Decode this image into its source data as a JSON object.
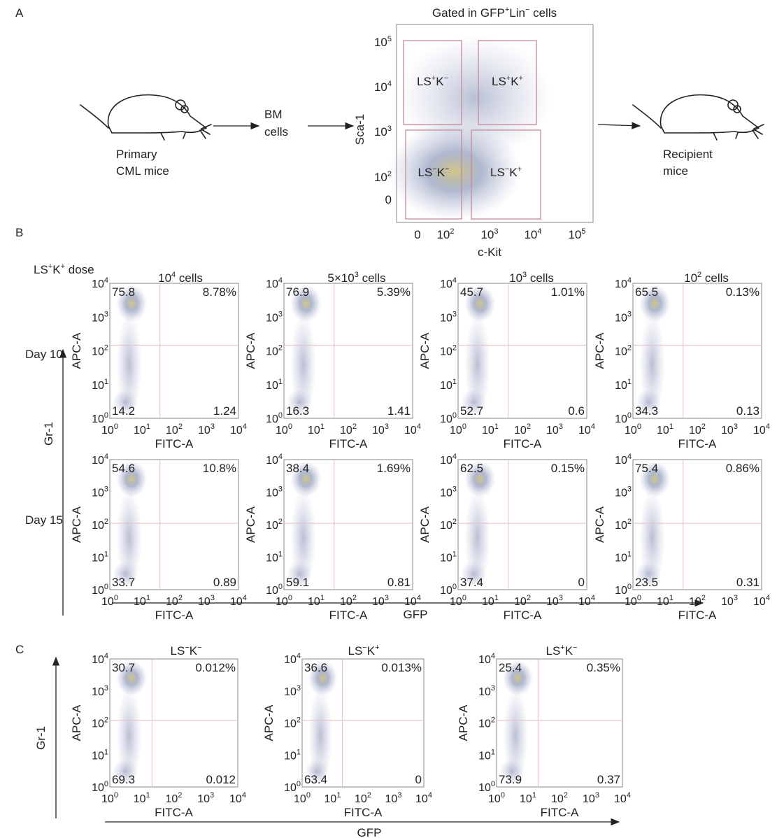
{
  "panel_labels": [
    "A",
    "B",
    "C"
  ],
  "panel_a": {
    "source_label": [
      "Primary",
      "CML mice"
    ],
    "bm_label": [
      "BM",
      "cells"
    ],
    "recipient_label": [
      "Recipient",
      "mice"
    ],
    "plot": {
      "title": [
        {
          "t": "Gated in GFP"
        },
        {
          "s": "+"
        },
        {
          "t": "Lin"
        },
        {
          "s": "−"
        },
        {
          "t": " cells"
        }
      ],
      "y_label": "Sca-1",
      "x_label": "c-Kit",
      "yticks": [
        [
          {
            "t": "10"
          },
          {
            "s": "5"
          }
        ],
        [
          {
            "t": "10"
          },
          {
            "s": "4"
          }
        ],
        [
          {
            "t": "10"
          },
          {
            "s": "3"
          }
        ],
        [
          {
            "t": "10"
          },
          {
            "s": "2"
          }
        ],
        [
          {
            "t": "0"
          }
        ]
      ],
      "xticks": [
        [
          {
            "t": "0"
          }
        ],
        [
          {
            "t": "10"
          },
          {
            "s": "2"
          }
        ],
        [
          {
            "t": "10"
          },
          {
            "s": "3"
          }
        ],
        [
          {
            "t": "10"
          },
          {
            "s": "4"
          }
        ],
        [
          {
            "t": "10"
          },
          {
            "s": "5"
          }
        ]
      ],
      "gates": [
        [
          {
            "t": "LS"
          },
          {
            "s": "+"
          },
          {
            "t": "K"
          },
          {
            "s": "−"
          }
        ],
        [
          {
            "t": "LS"
          },
          {
            "s": "+"
          },
          {
            "t": "K"
          },
          {
            "s": "+"
          }
        ],
        [
          {
            "t": "LS"
          },
          {
            "s": "−"
          },
          {
            "t": "K"
          },
          {
            "s": "−"
          }
        ],
        [
          {
            "t": "LS"
          },
          {
            "s": "−"
          },
          {
            "t": "K"
          },
          {
            "s": "+"
          }
        ]
      ]
    }
  },
  "flow_axis": {
    "y_label": "APC-A",
    "x_label": "FITC-A",
    "ticks": [
      [
        {
          "t": "10"
        },
        {
          "s": "0"
        }
      ],
      [
        {
          "t": "10"
        },
        {
          "s": "1"
        }
      ],
      [
        {
          "t": "10"
        },
        {
          "s": "2"
        }
      ],
      [
        {
          "t": "10"
        },
        {
          "s": "3"
        }
      ],
      [
        {
          "t": "10"
        },
        {
          "s": "4"
        }
      ]
    ]
  },
  "panel_b": {
    "dose_label": [
      {
        "t": "LS"
      },
      {
        "s": "+"
      },
      {
        "t": "K"
      },
      {
        "s": "+"
      },
      {
        "t": " dose"
      }
    ],
    "columns": [
      [
        {
          "t": "10"
        },
        {
          "s": "4"
        },
        {
          "t": " cells"
        }
      ],
      [
        {
          "t": "5×10"
        },
        {
          "s": "3"
        },
        {
          "t": " cells"
        }
      ],
      [
        {
          "t": "10"
        },
        {
          "s": "3"
        },
        {
          "t": " cells"
        }
      ],
      [
        {
          "t": "10"
        },
        {
          "s": "2"
        },
        {
          "t": " cells"
        }
      ]
    ],
    "rows": [
      {
        "label": "Day 10",
        "plots": [
          [
            "75.8",
            "8.78%",
            "14.2",
            "1.24"
          ],
          [
            "76.9",
            "5.39%",
            "16.3",
            "1.41"
          ],
          [
            "45.7",
            "1.01%",
            "52.7",
            "0.6"
          ],
          [
            "65.5",
            "0.13%",
            "34.3",
            "0.13"
          ]
        ]
      },
      {
        "label": "Day 15",
        "plots": [
          [
            "54.6",
            "10.8%",
            "33.7",
            "0.89"
          ],
          [
            "38.4",
            "1.69%",
            "59.1",
            "0.81"
          ],
          [
            "62.5",
            "0.15%",
            "37.4",
            "0"
          ],
          [
            "75.4",
            "0.86%",
            "23.5",
            "0.31"
          ]
        ]
      }
    ],
    "y_axis_label": "Gr-1",
    "x_axis_label": "GFP"
  },
  "panel_c": {
    "columns": [
      [
        {
          "t": "LS"
        },
        {
          "s": "−"
        },
        {
          "t": "K"
        },
        {
          "s": "−"
        }
      ],
      [
        {
          "t": "LS"
        },
        {
          "s": "−"
        },
        {
          "t": "K"
        },
        {
          "s": "+"
        }
      ],
      [
        {
          "t": "LS"
        },
        {
          "s": "+"
        },
        {
          "t": "K"
        },
        {
          "s": "−"
        }
      ]
    ],
    "plots": [
      [
        "30.7",
        "0.012%",
        "69.3",
        "0.012"
      ],
      [
        "36.6",
        "0.013%",
        "63.4",
        "0"
      ],
      [
        "25.4",
        "0.35%",
        "73.9",
        "0.37"
      ]
    ],
    "y_axis_label": "Gr-1",
    "x_axis_label": "GFP"
  }
}
